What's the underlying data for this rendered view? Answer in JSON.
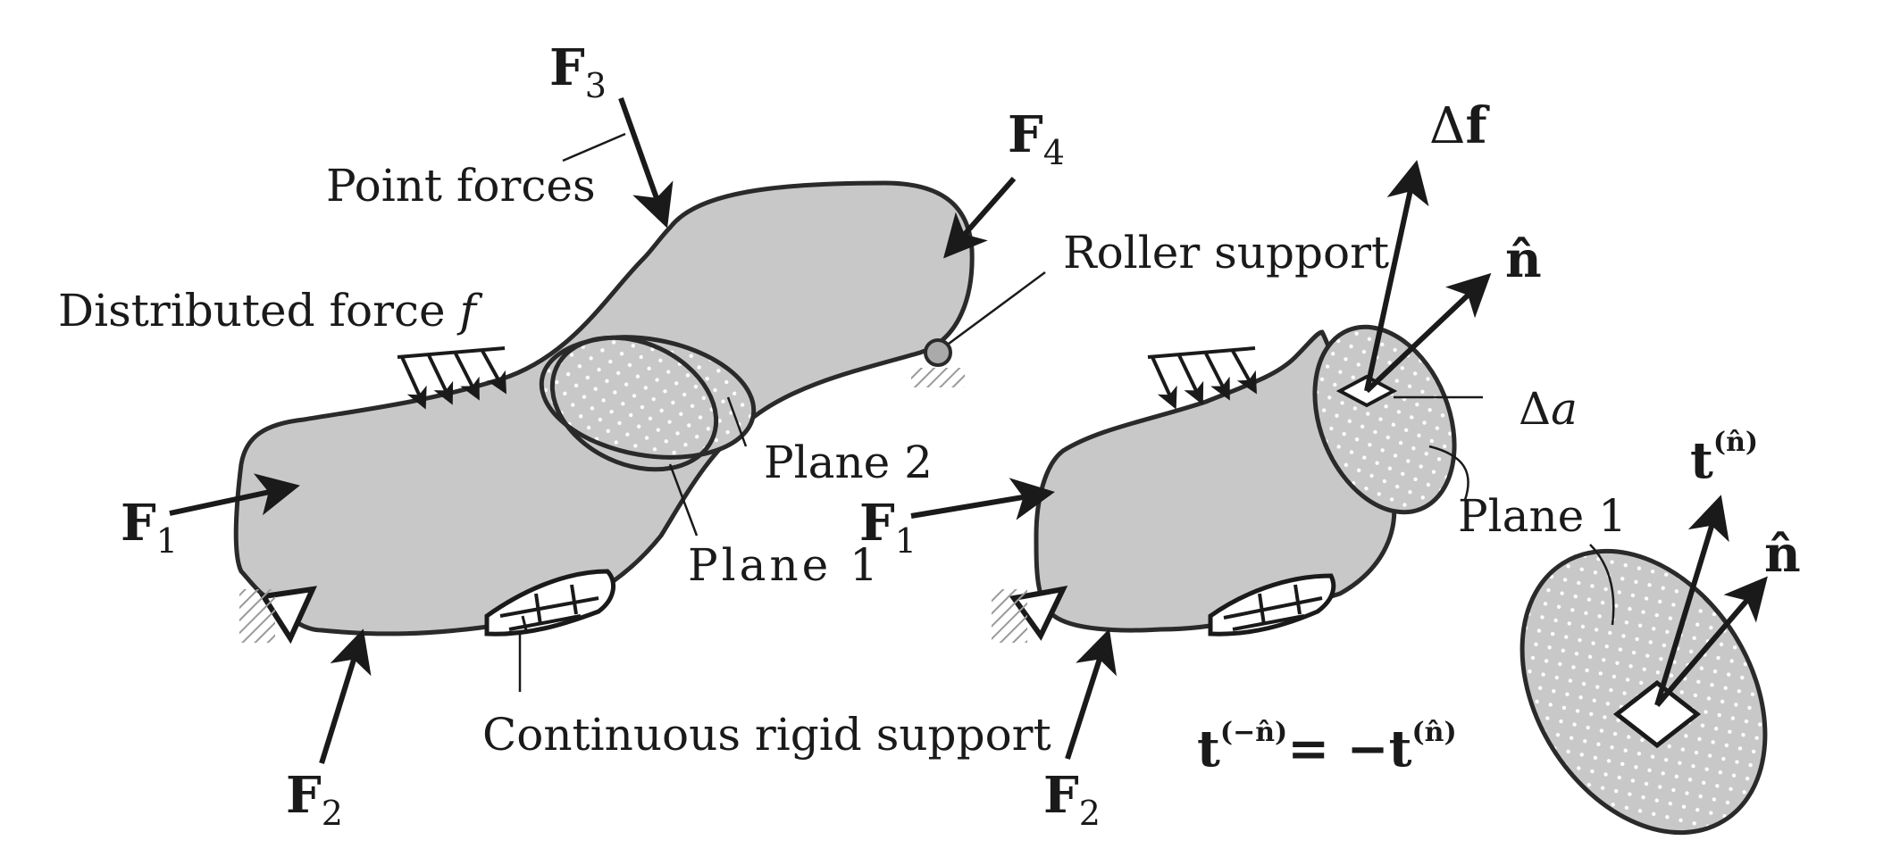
{
  "labels": {
    "f3": {
      "base": "F",
      "sub": "3"
    },
    "f4": {
      "base": "F",
      "sub": "4"
    },
    "f1_left": {
      "base": "F",
      "sub": "1"
    },
    "f2_left": {
      "base": "F",
      "sub": "2"
    },
    "f1_right": {
      "base": "F",
      "sub": "1"
    },
    "f2_right": {
      "base": "F",
      "sub": "2"
    },
    "point_forces": "Point forces",
    "distributed_force": "Distributed force ",
    "distributed_symbol": "f",
    "roller_support": "Roller support",
    "plane2": "Plane 2",
    "plane1_left": "Plane 1",
    "continuous_support": "Continuous rigid support",
    "delta_f": {
      "delta": "Δ",
      "base": "f"
    },
    "n_hat_top": "n̂",
    "delta_a": {
      "delta": "Δ",
      "base": "a"
    },
    "plane1_right": "Plane 1",
    "t_n": {
      "base": "t",
      "sup": "(n̂)"
    },
    "n_hat_bottom": "n̂",
    "equation": {
      "lhs_base": "t",
      "lhs_sup": "(−n̂)",
      "mid": "= −",
      "rhs_base": "t",
      "rhs_sup": "(n̂)"
    }
  },
  "colors": {
    "body": "#c8c8c8",
    "ink": "#1a1a1a",
    "support_hatch": "#9a9a9a"
  }
}
